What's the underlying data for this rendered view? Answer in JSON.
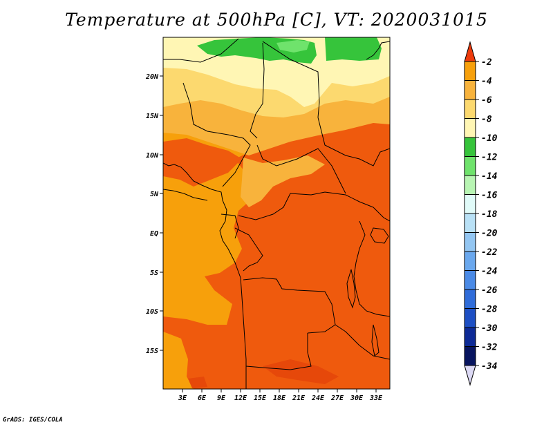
{
  "title": "Temperature at 500hPa [C], VT: 2020031015",
  "credit": "GrADS: IGES/COLA",
  "lat_labels": [
    "20N",
    "15N",
    "10N",
    "5N",
    "EQ",
    "5S",
    "10S",
    "15S"
  ],
  "lon_labels": [
    "3E",
    "6E",
    "9E",
    "12E",
    "15E",
    "18E",
    "21E",
    "24E",
    "27E",
    "30E",
    "33E"
  ],
  "colorbar": {
    "labels": [
      "-2",
      "-4",
      "-6",
      "-8",
      "-10",
      "-12",
      "-14",
      "-16",
      "-18",
      "-20",
      "-22",
      "-24",
      "-26",
      "-28",
      "-30",
      "-32",
      "-34"
    ],
    "colors": [
      "#f55a0f",
      "#f7a00b",
      "#f8b33c",
      "#fcd96f",
      "#fff6b4",
      "#36c43b",
      "#6fe36c",
      "#b8f5b3",
      "#e1fbf9",
      "#b9e1f6",
      "#93c6f2",
      "#6aa8ee",
      "#4a8ae6",
      "#2f6cd9",
      "#1d4fc4",
      "#0d2a96",
      "#07145f"
    ],
    "top_arrow_color": "#ee3b0c",
    "bottom_arrow_color": "#dcd9f4"
  },
  "field_colors": {
    "c2": "#ef5a0d",
    "c2b": "#e6480a",
    "c4": "#f7a00b",
    "c6": "#f8b33c",
    "c8": "#fcd96f",
    "c10": "#fff6b4",
    "c12": "#36c43b",
    "c14": "#6fe36c"
  }
}
